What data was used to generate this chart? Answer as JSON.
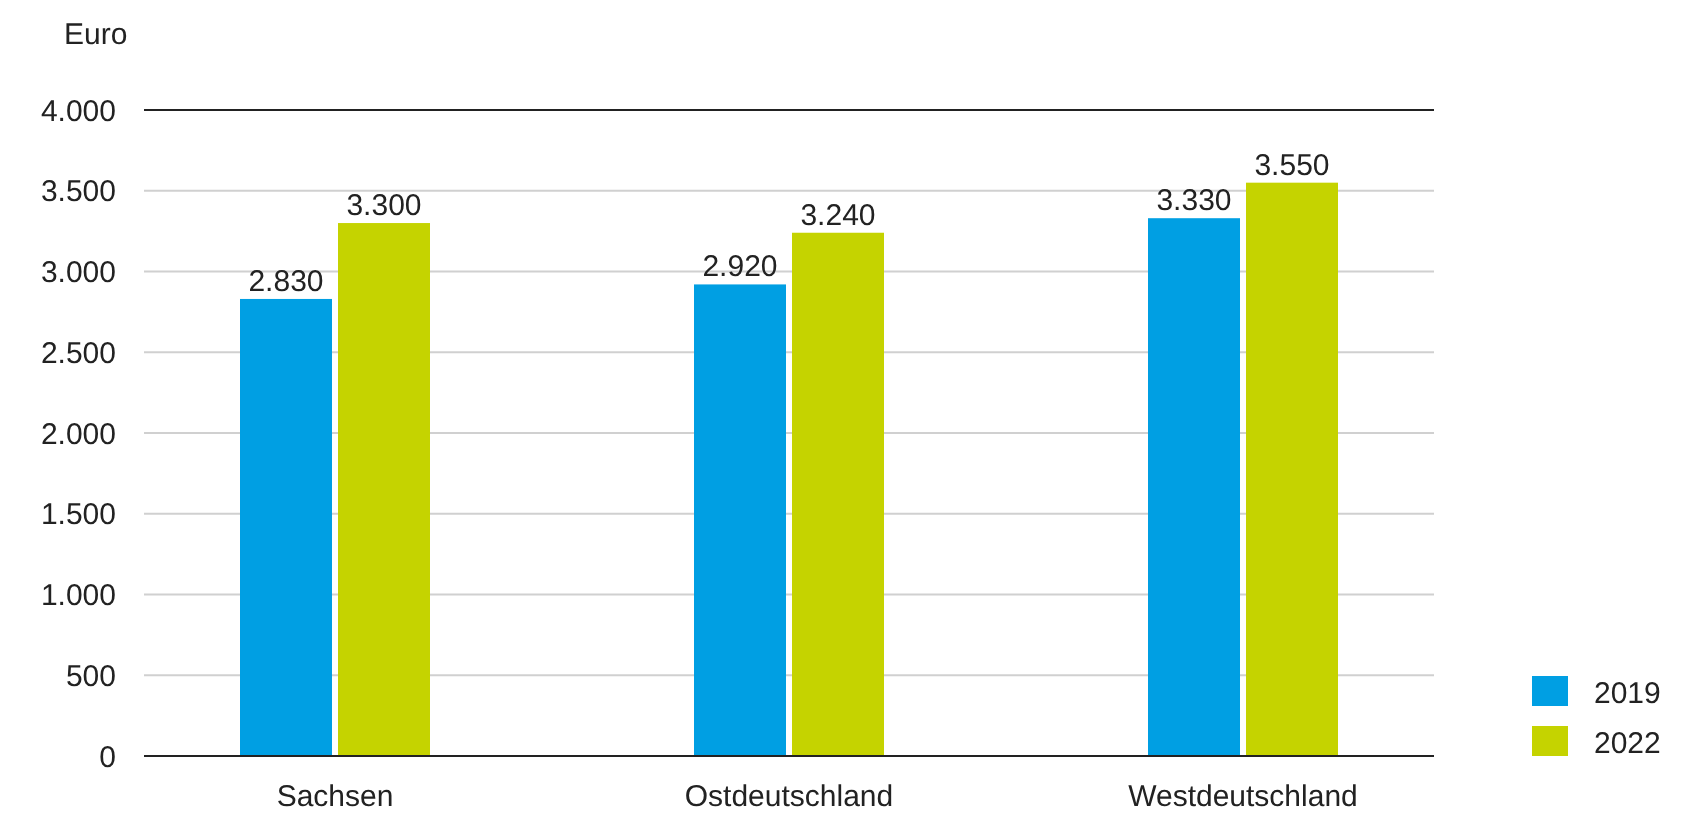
{
  "chart_data": {
    "type": "bar",
    "ylabel": "Euro",
    "categories": [
      "Sachsen",
      "Ostdeutschland",
      "Westdeutschland"
    ],
    "series": [
      {
        "name": "2019",
        "color": "#009fe3",
        "values": [
          2830,
          2920,
          3330
        ],
        "value_labels": [
          "2.830",
          "2.920",
          "3.330"
        ]
      },
      {
        "name": "2022",
        "color": "#c5d300",
        "values": [
          3300,
          3240,
          3550
        ],
        "value_labels": [
          "3.300",
          "3.240",
          "3.550"
        ]
      }
    ],
    "ylim": [
      0,
      4000
    ],
    "yticks": [
      {
        "value": 0,
        "label": "0"
      },
      {
        "value": 500,
        "label": "500"
      },
      {
        "value": 1000,
        "label": "1.000"
      },
      {
        "value": 1500,
        "label": "1.500"
      },
      {
        "value": 2000,
        "label": "2.000"
      },
      {
        "value": 2500,
        "label": "2.500"
      },
      {
        "value": 3000,
        "label": "3.000"
      },
      {
        "value": 3500,
        "label": "3.500"
      },
      {
        "value": 4000,
        "label": "4.000"
      }
    ],
    "grid": "y",
    "legend": "bottom right"
  }
}
